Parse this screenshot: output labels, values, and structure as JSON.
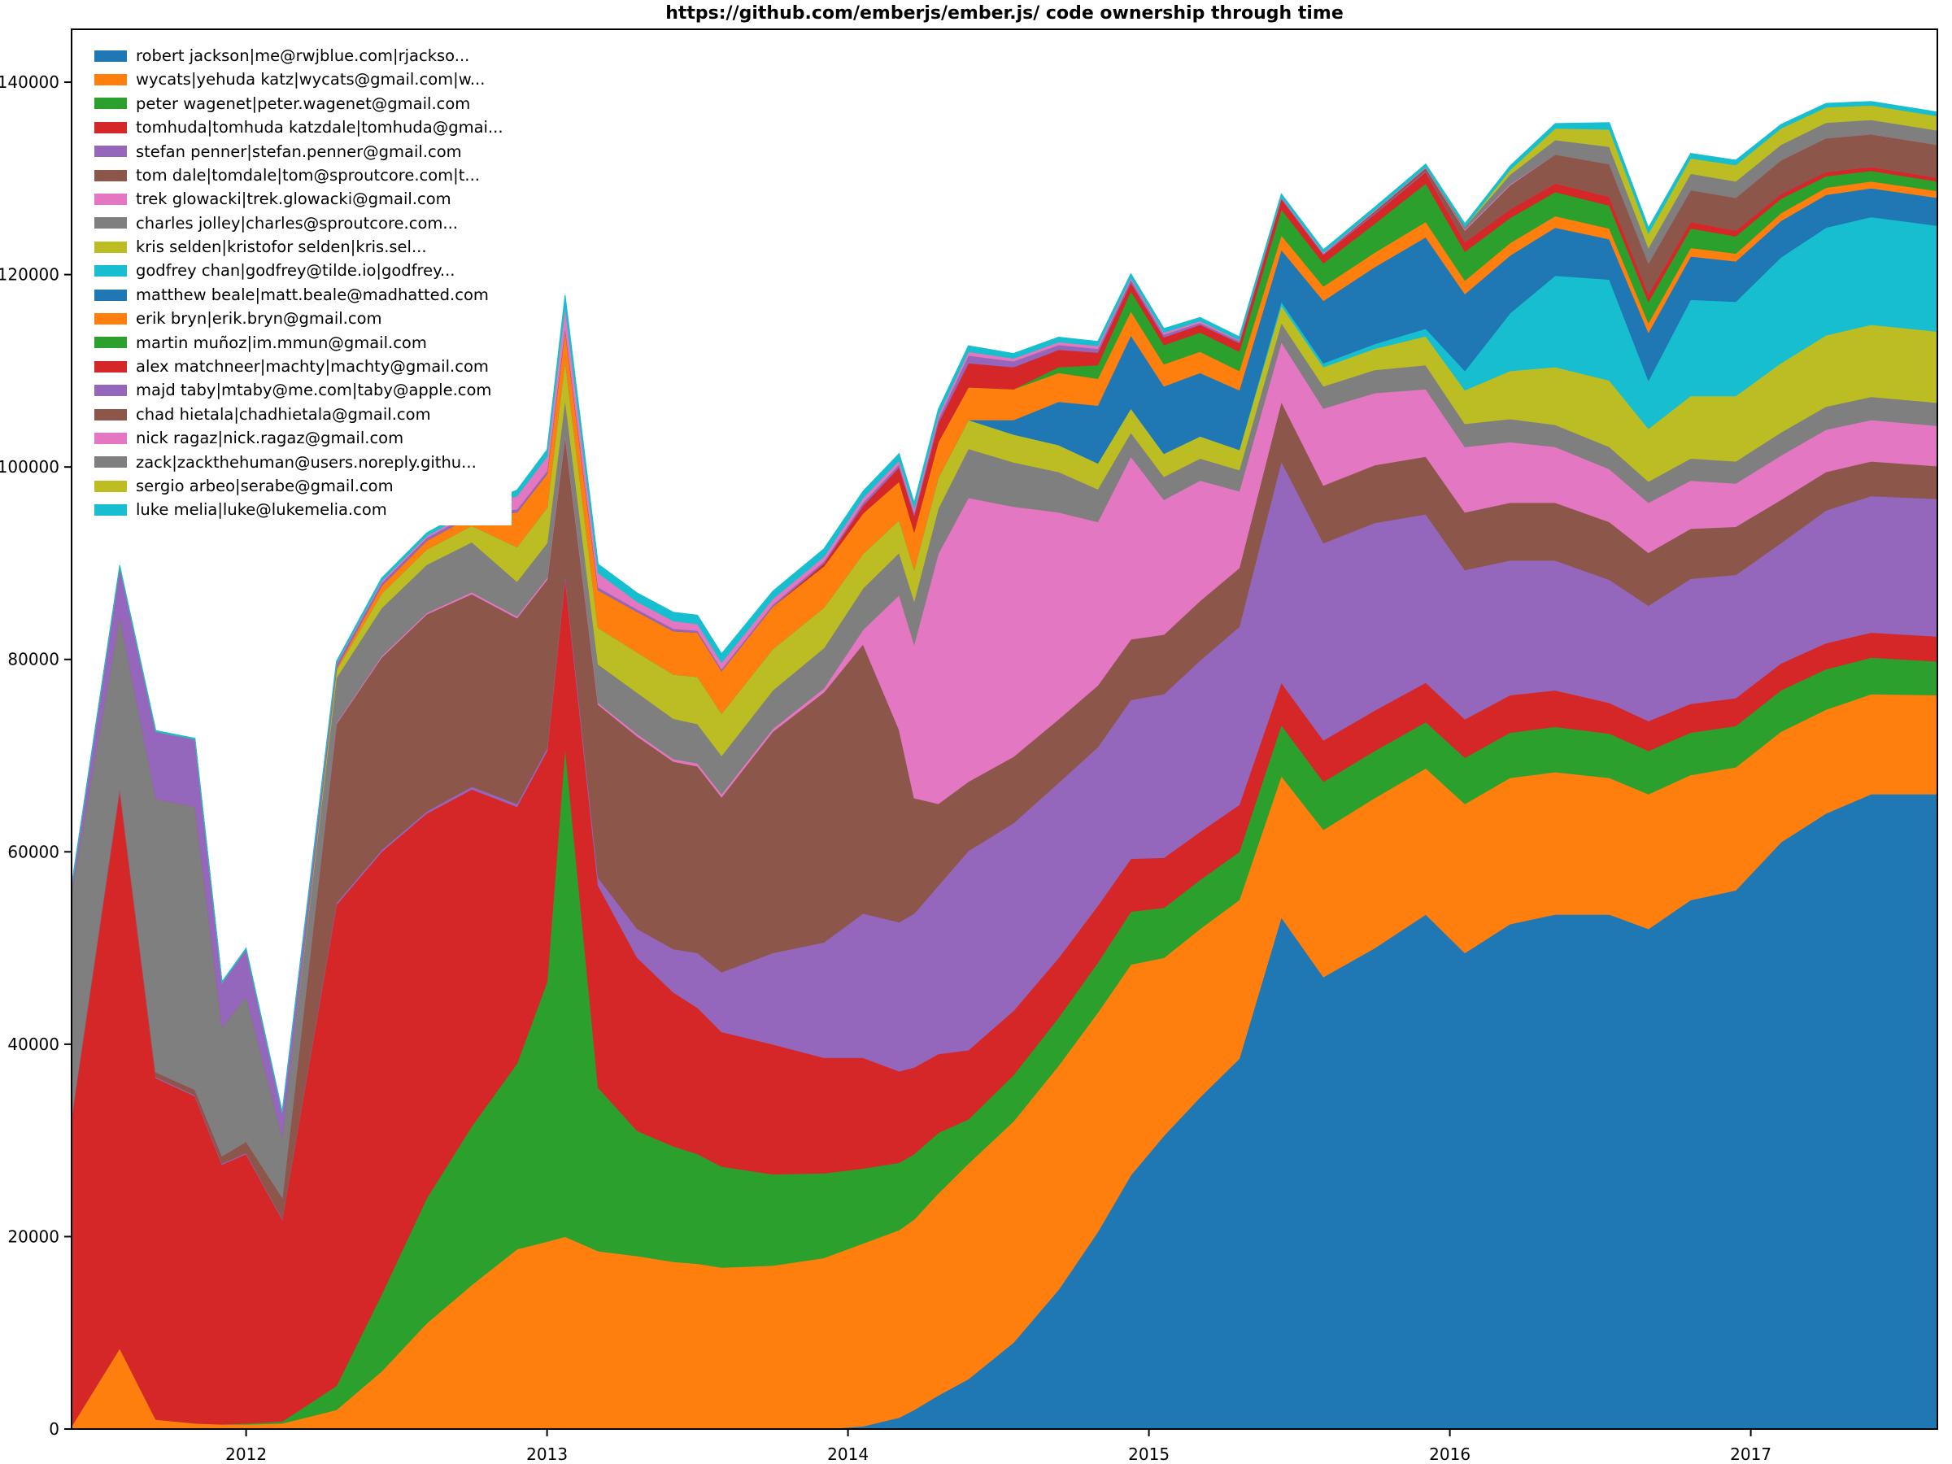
{
  "title": "https://github.com/emberjs/ember.js/ code ownership through time",
  "chart_data": {
    "type": "area",
    "stacked": true,
    "title": "https://github.com/emberjs/ember.js/ code ownership through time",
    "xlabel": "",
    "ylabel": "",
    "grid": false,
    "legend_position": "upper left",
    "xlim": [
      2011.42,
      2017.62
    ],
    "ylim": [
      0,
      145500
    ],
    "xticks": [
      2012,
      2013,
      2014,
      2015,
      2016,
      2017
    ],
    "yticks": [
      0,
      20000,
      40000,
      60000,
      80000,
      100000,
      120000,
      140000
    ],
    "x": [
      2011.42,
      2011.58,
      2011.7,
      2011.83,
      2011.92,
      2012.0,
      2012.12,
      2012.3,
      2012.45,
      2012.6,
      2012.75,
      2012.9,
      2013.0,
      2013.06,
      2013.17,
      2013.3,
      2013.42,
      2013.5,
      2013.58,
      2013.75,
      2013.92,
      2014.05,
      2014.17,
      2014.22,
      2014.3,
      2014.4,
      2014.55,
      2014.7,
      2014.83,
      2014.94,
      2015.05,
      2015.17,
      2015.3,
      2015.44,
      2015.58,
      2015.75,
      2015.92,
      2016.05,
      2016.2,
      2016.35,
      2016.53,
      2016.66,
      2016.8,
      2016.95,
      2017.1,
      2017.25,
      2017.4,
      2017.62
    ],
    "series": [
      {
        "id": "robert-jackson",
        "name": "robert jackson|me@rwjblue.com|rjackso...",
        "color": "#1f77b4",
        "values": [
          0,
          0,
          0,
          0,
          0,
          0,
          0,
          0,
          0,
          0,
          0,
          0,
          0,
          0,
          0,
          0,
          0,
          0,
          0,
          0,
          0,
          300,
          1200,
          2000,
          3500,
          5200,
          9000,
          14500,
          20500,
          26400,
          30500,
          34500,
          38500,
          53200,
          47000,
          50000,
          53500,
          49500,
          52500,
          53500,
          53500,
          52000,
          55000,
          56000,
          61000,
          64000,
          66000,
          66000
        ]
      },
      {
        "id": "wycats",
        "name": "wycats|yehuda katz|wycats@gmail.com|w...",
        "color": "#ff7f0e",
        "values": [
          300,
          8400,
          1000,
          600,
          500,
          500,
          600,
          2000,
          6000,
          11000,
          15000,
          18700,
          19500,
          20000,
          18500,
          18000,
          17400,
          17200,
          16800,
          17000,
          17800,
          19000,
          19500,
          19800,
          21000,
          22400,
          23000,
          23300,
          22800,
          21900,
          18500,
          17500,
          16500,
          14700,
          15300,
          15600,
          15200,
          15500,
          15200,
          14800,
          14200,
          14000,
          13000,
          12800,
          11500,
          10800,
          10400,
          10300
        ]
      },
      {
        "id": "peter-wagenet",
        "name": "peter wagenet|peter.wagenet@gmail.com",
        "color": "#2ca02c",
        "values": [
          0,
          0,
          0,
          0,
          0,
          100,
          200,
          2500,
          8000,
          13000,
          16500,
          19300,
          27000,
          51000,
          17000,
          13000,
          12000,
          11400,
          10500,
          9500,
          8800,
          7800,
          7000,
          6800,
          6300,
          4600,
          4800,
          5000,
          5200,
          5500,
          5200,
          5100,
          5000,
          5300,
          5000,
          4900,
          4800,
          4800,
          4700,
          4700,
          4600,
          4500,
          4400,
          4300,
          4300,
          4200,
          3800,
          3500
        ]
      },
      {
        "id": "tomhuda",
        "name": "tomhuda|tomhuda katzdale|tomhuda@gmai...",
        "color": "#d62728",
        "values": [
          32000,
          58000,
          35500,
          34000,
          27000,
          28000,
          21000,
          50000,
          46000,
          40000,
          35000,
          26700,
          24000,
          17600,
          21000,
          18000,
          16000,
          15200,
          14000,
          13500,
          12000,
          11500,
          9500,
          9000,
          8200,
          7200,
          6700,
          6200,
          5900,
          5500,
          5200,
          5000,
          4900,
          4400,
          4300,
          4200,
          4100,
          4000,
          3900,
          3800,
          3200,
          3100,
          3000,
          2900,
          2800,
          2700,
          2600,
          2600
        ]
      },
      {
        "id": "stefan-penner",
        "name": "stefan penner|stefan.penner@gmail.com",
        "color": "#9467bd",
        "values": [
          100,
          100,
          100,
          100,
          100,
          100,
          100,
          200,
          200,
          200,
          300,
          300,
          300,
          300,
          800,
          3000,
          4500,
          5700,
          6200,
          9500,
          12000,
          15000,
          15500,
          16000,
          17500,
          20700,
          19500,
          18200,
          16500,
          16500,
          17000,
          17800,
          18500,
          23000,
          20500,
          19500,
          17500,
          15500,
          14000,
          13500,
          12800,
          12000,
          13000,
          12800,
          12500,
          13800,
          14200,
          14300
        ]
      },
      {
        "id": "tom-dale",
        "name": "tom dale|tomdale|tom@sproutcore.com|t...",
        "color": "#8c564b",
        "values": [
          300,
          400,
          500,
          600,
          800,
          1200,
          2200,
          18600,
          20000,
          20500,
          20000,
          19300,
          17500,
          14400,
          18000,
          20000,
          19500,
          19400,
          18200,
          23000,
          26000,
          28000,
          20000,
          12000,
          8500,
          7200,
          6900,
          6600,
          6400,
          6300,
          6200,
          6200,
          6100,
          6200,
          6000,
          6000,
          6000,
          6000,
          6000,
          6000,
          6000,
          5500,
          5200,
          5000,
          4500,
          4000,
          3600,
          3400
        ]
      },
      {
        "id": "trek-glowacki",
        "name": "trek glowacki|trek.glowacki@gmail.com",
        "color": "#e377c2",
        "values": [
          0,
          0,
          0,
          0,
          0,
          0,
          0,
          100,
          150,
          150,
          200,
          200,
          200,
          200,
          200,
          250,
          250,
          300,
          300,
          300,
          400,
          1500,
          14000,
          16000,
          26000,
          29500,
          26000,
          21500,
          17000,
          19000,
          14000,
          12500,
          8000,
          6200,
          8000,
          7500,
          7000,
          6800,
          6300,
          5800,
          5500,
          5200,
          5000,
          4500,
          4600,
          4400,
          4300,
          4200
        ]
      },
      {
        "id": "charles-jolley",
        "name": "charles jolley|charles@sproutcore.com...",
        "color": "#7f7f7f",
        "values": [
          23200,
          17600,
          28400,
          29400,
          13400,
          15100,
          6300,
          4700,
          5000,
          5000,
          5200,
          3600,
          3600,
          3600,
          4000,
          4300,
          4200,
          4100,
          4000,
          4000,
          4200,
          4300,
          4400,
          4500,
          4700,
          5100,
          4600,
          4200,
          3400,
          2500,
          2400,
          2300,
          2200,
          2000,
          2300,
          2400,
          2500,
          2400,
          2400,
          2300,
          2300,
          2200,
          2300,
          2300,
          2400,
          2400,
          2400,
          2400
        ]
      },
      {
        "id": "kris-selden",
        "name": "kris selden|kristofor selden|kris.sel...",
        "color": "#bcbd22",
        "values": [
          0,
          0,
          0,
          0,
          0,
          0,
          0,
          800,
          1500,
          1600,
          1700,
          3600,
          3700,
          4100,
          3800,
          4200,
          4600,
          4900,
          4400,
          4300,
          4200,
          3600,
          3400,
          3300,
          3200,
          3000,
          2900,
          2800,
          2700,
          2500,
          2400,
          2300,
          2100,
          1800,
          2000,
          2200,
          3000,
          3500,
          5000,
          6000,
          6900,
          5500,
          6500,
          6800,
          7200,
          7400,
          7500,
          7400
        ]
      },
      {
        "id": "godfrey-chan",
        "name": "godfrey chan|godfrey@tilde.io|godfrey...",
        "color": "#17becf",
        "values": [
          0,
          0,
          0,
          0,
          0,
          0,
          0,
          0,
          0,
          0,
          0,
          0,
          0,
          0,
          0,
          0,
          0,
          0,
          0,
          0,
          0,
          0,
          0,
          0,
          0,
          0,
          0,
          0,
          0,
          0,
          0,
          0,
          0,
          400,
          400,
          500,
          800,
          2000,
          6000,
          9500,
          10500,
          5000,
          10000,
          9800,
          11000,
          11200,
          11200,
          11000
        ]
      },
      {
        "id": "matthew-beale",
        "name": "matthew beale|matt.beale@madhatted.com",
        "color": "#1f77b4",
        "values": [
          0,
          0,
          0,
          0,
          0,
          0,
          0,
          0,
          0,
          0,
          0,
          0,
          0,
          0,
          0,
          0,
          0,
          0,
          0,
          0,
          0,
          0,
          0,
          0,
          0,
          0,
          1500,
          4500,
          6000,
          7600,
          7000,
          6600,
          6200,
          5400,
          6500,
          8000,
          9500,
          8000,
          6000,
          5000,
          4200,
          5000,
          4500,
          4200,
          3800,
          3400,
          3000,
          2900
        ]
      },
      {
        "id": "erik-bryn",
        "name": "erik bryn|erik.bryn@gmail.com",
        "color": "#ff7f0e",
        "values": [
          0,
          0,
          0,
          0,
          0,
          0,
          0,
          200,
          800,
          900,
          1000,
          3600,
          3500,
          3100,
          3900,
          4200,
          4500,
          4600,
          4400,
          4400,
          4300,
          4200,
          4000,
          3900,
          3700,
          3400,
          3200,
          3000,
          2800,
          2500,
          2300,
          2200,
          2000,
          1500,
          1500,
          1500,
          1600,
          1400,
          1300,
          1200,
          1100,
          1000,
          900,
          800,
          800,
          750,
          700,
          700
        ]
      },
      {
        "id": "martin-munoz",
        "name": "martin muñoz|im.mmun@gmail.com",
        "color": "#2ca02c",
        "values": [
          0,
          0,
          0,
          0,
          0,
          0,
          0,
          0,
          0,
          0,
          0,
          0,
          0,
          0,
          0,
          0,
          0,
          0,
          0,
          0,
          0,
          0,
          0,
          0,
          0,
          0,
          0,
          600,
          1400,
          2100,
          2000,
          2000,
          2000,
          2700,
          2400,
          3000,
          4000,
          3000,
          2600,
          2500,
          2400,
          2200,
          2000,
          1800,
          1500,
          1200,
          1100,
          1000
        ]
      },
      {
        "id": "alex-matchneer",
        "name": "alex matchneer|machty|machty@gmail.com",
        "color": "#d62728",
        "values": [
          0,
          0,
          0,
          0,
          0,
          0,
          0,
          0,
          0,
          0,
          0,
          0,
          0,
          0,
          0,
          0,
          0,
          0,
          0,
          0,
          300,
          800,
          1500,
          1700,
          2000,
          2500,
          2300,
          1800,
          1300,
          900,
          800,
          800,
          900,
          1100,
          900,
          1000,
          1200,
          1000,
          900,
          900,
          900,
          800,
          700,
          600,
          500,
          450,
          400,
          400
        ]
      },
      {
        "id": "majd-taby",
        "name": "majd taby|mtaby@me.com|taby@apple.com",
        "color": "#9467bd",
        "values": [
          500,
          5200,
          7000,
          7000,
          4600,
          4900,
          2500,
          400,
          300,
          300,
          300,
          300,
          300,
          300,
          300,
          250,
          250,
          200,
          200,
          200,
          200,
          300,
          300,
          300,
          400,
          800,
          600,
          500,
          400,
          300,
          300,
          200,
          200,
          100,
          100,
          100,
          100,
          0,
          0,
          0,
          0,
          0,
          0,
          0,
          0,
          0,
          0,
          0
        ]
      },
      {
        "id": "chad-hietala",
        "name": "chad hietala|chadhietala@gmail.com",
        "color": "#8c564b",
        "values": [
          0,
          0,
          0,
          0,
          0,
          0,
          0,
          0,
          0,
          0,
          0,
          0,
          0,
          0,
          0,
          0,
          0,
          0,
          0,
          0,
          0,
          0,
          0,
          0,
          0,
          0,
          0,
          0,
          0,
          0,
          0,
          0,
          0,
          0,
          0,
          200,
          300,
          1200,
          2500,
          3000,
          3400,
          3200,
          3300,
          3400,
          3500,
          3500,
          3400,
          3400
        ]
      },
      {
        "id": "nick-ragaz",
        "name": "nick ragaz|nick.ragaz@gmail.com",
        "color": "#e377c2",
        "values": [
          0,
          0,
          0,
          0,
          0,
          0,
          0,
          100,
          200,
          200,
          250,
          1400,
          1500,
          2200,
          1500,
          800,
          800,
          700,
          700,
          600,
          500,
          500,
          400,
          400,
          400,
          400,
          300,
          300,
          300,
          200,
          200,
          200,
          100,
          100,
          100,
          100,
          100,
          100,
          100,
          0,
          0,
          0,
          0,
          0,
          0,
          0,
          0,
          0
        ]
      },
      {
        "id": "zack",
        "name": "zack|zackthehuman@users.noreply.githu...",
        "color": "#7f7f7f",
        "values": [
          0,
          0,
          0,
          0,
          0,
          0,
          0,
          0,
          0,
          0,
          0,
          0,
          0,
          0,
          0,
          0,
          0,
          0,
          0,
          0,
          0,
          0,
          0,
          0,
          0,
          0,
          0,
          0,
          0,
          0,
          0,
          0,
          0,
          0,
          0,
          0,
          0,
          300,
          1000,
          1500,
          1800,
          1600,
          1700,
          1700,
          1600,
          1600,
          1500,
          1500
        ]
      },
      {
        "id": "sergio-arbeo",
        "name": "sergio arbeo|serabe@gmail.com",
        "color": "#bcbd22",
        "values": [
          0,
          0,
          0,
          0,
          0,
          0,
          0,
          0,
          0,
          0,
          0,
          0,
          0,
          0,
          0,
          0,
          0,
          0,
          0,
          0,
          0,
          0,
          0,
          0,
          0,
          0,
          0,
          0,
          0,
          0,
          0,
          0,
          0,
          0,
          0,
          0,
          0,
          0,
          500,
          1200,
          1800,
          1500,
          1600,
          1700,
          1700,
          1600,
          1500,
          1500
        ]
      },
      {
        "id": "luke-melia",
        "name": "luke melia|luke@lukemelia.com",
        "color": "#17becf",
        "values": [
          100,
          100,
          100,
          100,
          100,
          100,
          100,
          200,
          300,
          300,
          300,
          600,
          700,
          1100,
          900,
          900,
          900,
          900,
          900,
          800,
          800,
          700,
          700,
          600,
          600,
          600,
          500,
          500,
          450,
          400,
          400,
          350,
          350,
          300,
          300,
          300,
          300,
          300,
          400,
          500,
          700,
          600,
          500,
          500,
          400,
          400,
          400,
          400
        ]
      }
    ]
  }
}
